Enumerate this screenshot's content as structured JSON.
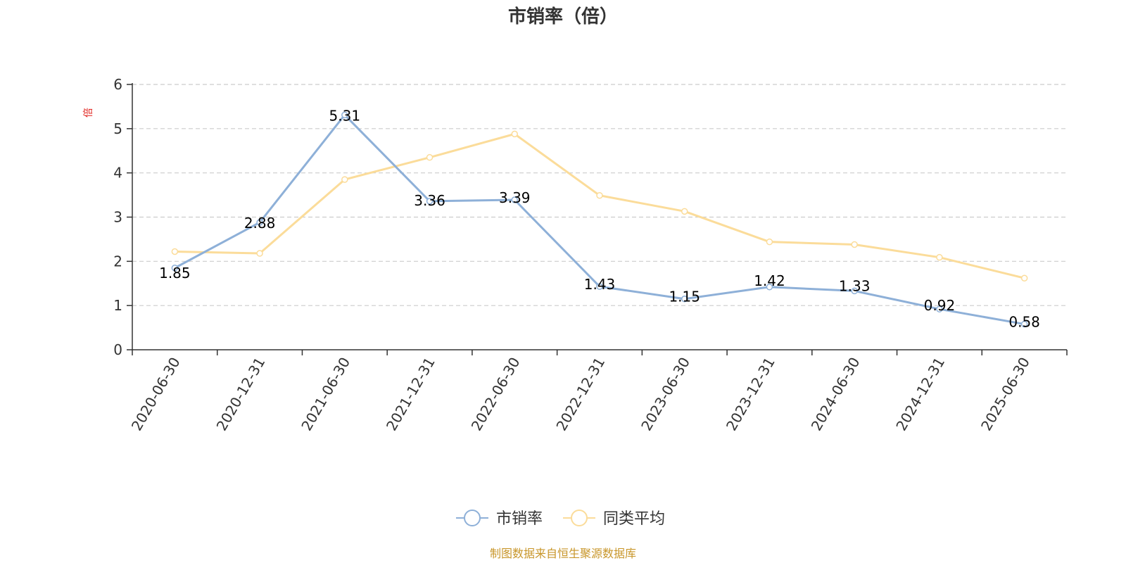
{
  "chart_data": {
    "type": "line",
    "title": "市销率（倍）",
    "ylabel": "倍",
    "ylim": [
      0,
      6
    ],
    "yticks": [
      0,
      1,
      2,
      3,
      4,
      5,
      6
    ],
    "categories": [
      "2020-06-30",
      "2020-12-31",
      "2021-06-30",
      "2021-12-31",
      "2022-06-30",
      "2022-12-31",
      "2023-06-30",
      "2023-12-31",
      "2024-06-30",
      "2024-12-31",
      "2025-06-30"
    ],
    "series": [
      {
        "name": "市销率",
        "color": "#8eb0d8",
        "values": [
          1.85,
          2.88,
          5.31,
          3.36,
          3.39,
          1.43,
          1.15,
          1.42,
          1.33,
          0.92,
          0.58
        ],
        "show_labels": true
      },
      {
        "name": "同类平均",
        "color": "#fbdc9a",
        "values": [
          2.22,
          2.18,
          3.85,
          4.35,
          4.88,
          3.49,
          3.13,
          2.44,
          2.38,
          2.09,
          1.62
        ],
        "show_labels": false
      }
    ],
    "grid": true,
    "legend": "bottom-center",
    "source": "制图数据来自恒生聚源数据库"
  }
}
